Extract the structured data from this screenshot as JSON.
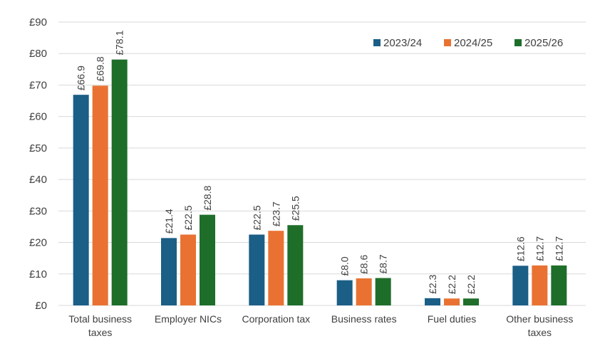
{
  "chart_data": {
    "type": "bar",
    "title": "",
    "xlabel": "",
    "ylabel": "",
    "ylim": [
      0,
      90
    ],
    "ytick_step": 10,
    "ytick_prefix": "£",
    "grid": true,
    "legend_position": "top-right",
    "categories": [
      [
        "Total business",
        "taxes"
      ],
      [
        "Employer NICs"
      ],
      [
        "Corporation tax"
      ],
      [
        "Business rates"
      ],
      [
        "Fuel duties"
      ],
      [
        "Other business",
        "taxes"
      ]
    ],
    "series": [
      {
        "name": "2023/24",
        "color": "#1b5e86",
        "values": [
          66.9,
          21.4,
          22.5,
          8.0,
          2.3,
          12.6
        ],
        "labels": [
          "£66.9",
          "£21.4",
          "£22.5",
          "£8.0",
          "£2.3",
          "£12.6"
        ]
      },
      {
        "name": "2024/25",
        "color": "#e97232",
        "values": [
          69.8,
          22.5,
          23.7,
          8.6,
          2.2,
          12.7
        ],
        "labels": [
          "£69.8",
          "£22.5",
          "£23.7",
          "£8.6",
          "£2.2",
          "£12.7"
        ]
      },
      {
        "name": "2025/26",
        "color": "#1e6e2a",
        "values": [
          78.1,
          28.8,
          25.5,
          8.7,
          2.2,
          12.7
        ],
        "labels": [
          "£78.1",
          "£28.8",
          "£25.5",
          "£8.7",
          "£2.2",
          "£12.7"
        ]
      }
    ]
  }
}
